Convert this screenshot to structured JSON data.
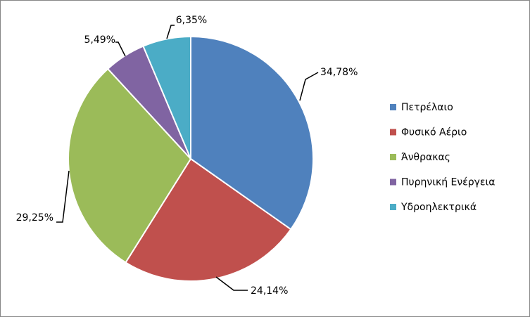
{
  "chart_data": {
    "type": "pie",
    "title": "",
    "slices": [
      {
        "name": "Πετρέλαιο",
        "value": 34.78,
        "label": "34,78%",
        "color": "#4F81BD"
      },
      {
        "name": "Φυσικό Αέριο",
        "value": 24.14,
        "label": "24,14%",
        "color": "#C0504D"
      },
      {
        "name": "Άνθρακας",
        "value": 29.25,
        "label": "29,25%",
        "color": "#9BBB59"
      },
      {
        "name": "Πυρηνική Ενέργεια",
        "value": 5.49,
        "label": "5,49%",
        "color": "#8064A2"
      },
      {
        "name": "Υδροηλεκτρικά",
        "value": 6.35,
        "label": "6,35%",
        "color": "#4BACC6"
      }
    ],
    "legend_position": "right"
  }
}
